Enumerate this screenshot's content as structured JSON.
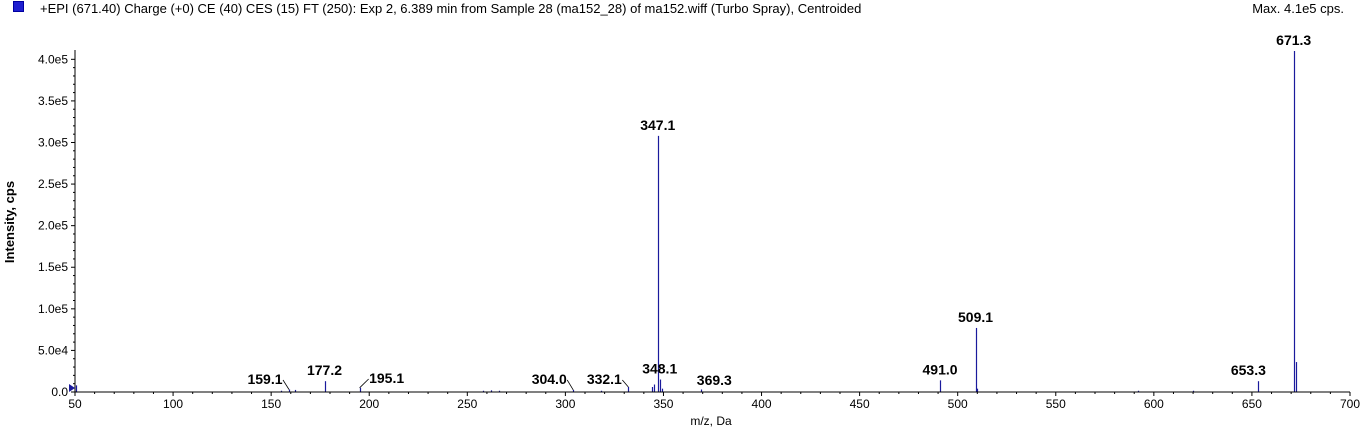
{
  "header": {
    "title": "+EPI (671.40) Charge (+0) CE (40) CES (15) FT (250): Exp 2, 6.389 min from Sample 28 (ma152_28) of ma152.wiff (Turbo Spray), Centroided",
    "max_label": "Max. 4.1e5 cps."
  },
  "colors": {
    "peak": "#1a1a9c",
    "swatch": "#1f1fd0",
    "axis": "#000000"
  },
  "chart_data": {
    "type": "bar",
    "xlabel": "m/z, Da",
    "ylabel": "Intensity, cps",
    "xlim": [
      50,
      700
    ],
    "ylim": [
      0,
      410000
    ],
    "xticks": [
      50,
      100,
      150,
      200,
      250,
      300,
      350,
      400,
      450,
      500,
      550,
      600,
      650,
      700
    ],
    "xtick_labels": [
      "50",
      "100",
      "150",
      "200",
      "250",
      "300",
      "350",
      "400",
      "450",
      "500",
      "550",
      "600",
      "650",
      "700"
    ],
    "yticks": [
      0,
      50000,
      100000,
      150000,
      200000,
      250000,
      300000,
      350000,
      400000
    ],
    "ytick_labels": [
      "0.0",
      "5.0e4",
      "1.0e5",
      "1.5e5",
      "2.0e5",
      "2.5e5",
      "3.0e5",
      "3.5e5",
      "4.0e5"
    ],
    "peaks": [
      {
        "mz": 50.5,
        "intensity": 8000
      },
      {
        "mz": 155.0,
        "intensity": 1500
      },
      {
        "mz": 159.1,
        "intensity": 3000
      },
      {
        "mz": 162.0,
        "intensity": 2500
      },
      {
        "mz": 177.2,
        "intensity": 13000
      },
      {
        "mz": 195.1,
        "intensity": 5000
      },
      {
        "mz": 258.0,
        "intensity": 1500
      },
      {
        "mz": 262.0,
        "intensity": 2000
      },
      {
        "mz": 266.0,
        "intensity": 1500
      },
      {
        "mz": 304.0,
        "intensity": 2500
      },
      {
        "mz": 318.0,
        "intensity": 1500
      },
      {
        "mz": 332.1,
        "intensity": 6000
      },
      {
        "mz": 344.0,
        "intensity": 6000
      },
      {
        "mz": 345.0,
        "intensity": 9000
      },
      {
        "mz": 347.1,
        "intensity": 308000
      },
      {
        "mz": 348.1,
        "intensity": 15000
      },
      {
        "mz": 349.0,
        "intensity": 4000
      },
      {
        "mz": 369.3,
        "intensity": 3000
      },
      {
        "mz": 491.0,
        "intensity": 14000
      },
      {
        "mz": 509.1,
        "intensity": 77000
      },
      {
        "mz": 510.0,
        "intensity": 4000
      },
      {
        "mz": 592.0,
        "intensity": 1500
      },
      {
        "mz": 620.0,
        "intensity": 1500
      },
      {
        "mz": 653.3,
        "intensity": 13000
      },
      {
        "mz": 671.3,
        "intensity": 410000
      },
      {
        "mz": 672.3,
        "intensity": 36000
      }
    ],
    "annotations": [
      {
        "text": "159.1",
        "mz": 159.1,
        "intensity": 3000
      },
      {
        "text": "177.2",
        "mz": 177.2,
        "intensity": 13000
      },
      {
        "text": "195.1",
        "mz": 195.1,
        "intensity": 5000
      },
      {
        "text": "304.0",
        "mz": 304.0,
        "intensity": 2500
      },
      {
        "text": "332.1",
        "mz": 332.1,
        "intensity": 6000
      },
      {
        "text": "347.1",
        "mz": 347.1,
        "intensity": 308000
      },
      {
        "text": "348.1",
        "mz": 348.1,
        "intensity": 15000
      },
      {
        "text": "369.3",
        "mz": 369.3,
        "intensity": 3000
      },
      {
        "text": "491.0",
        "mz": 491.0,
        "intensity": 14000
      },
      {
        "text": "509.1",
        "mz": 509.1,
        "intensity": 77000
      },
      {
        "text": "653.3",
        "mz": 653.3,
        "intensity": 13000
      },
      {
        "text": "671.3",
        "mz": 671.3,
        "intensity": 410000
      }
    ]
  }
}
